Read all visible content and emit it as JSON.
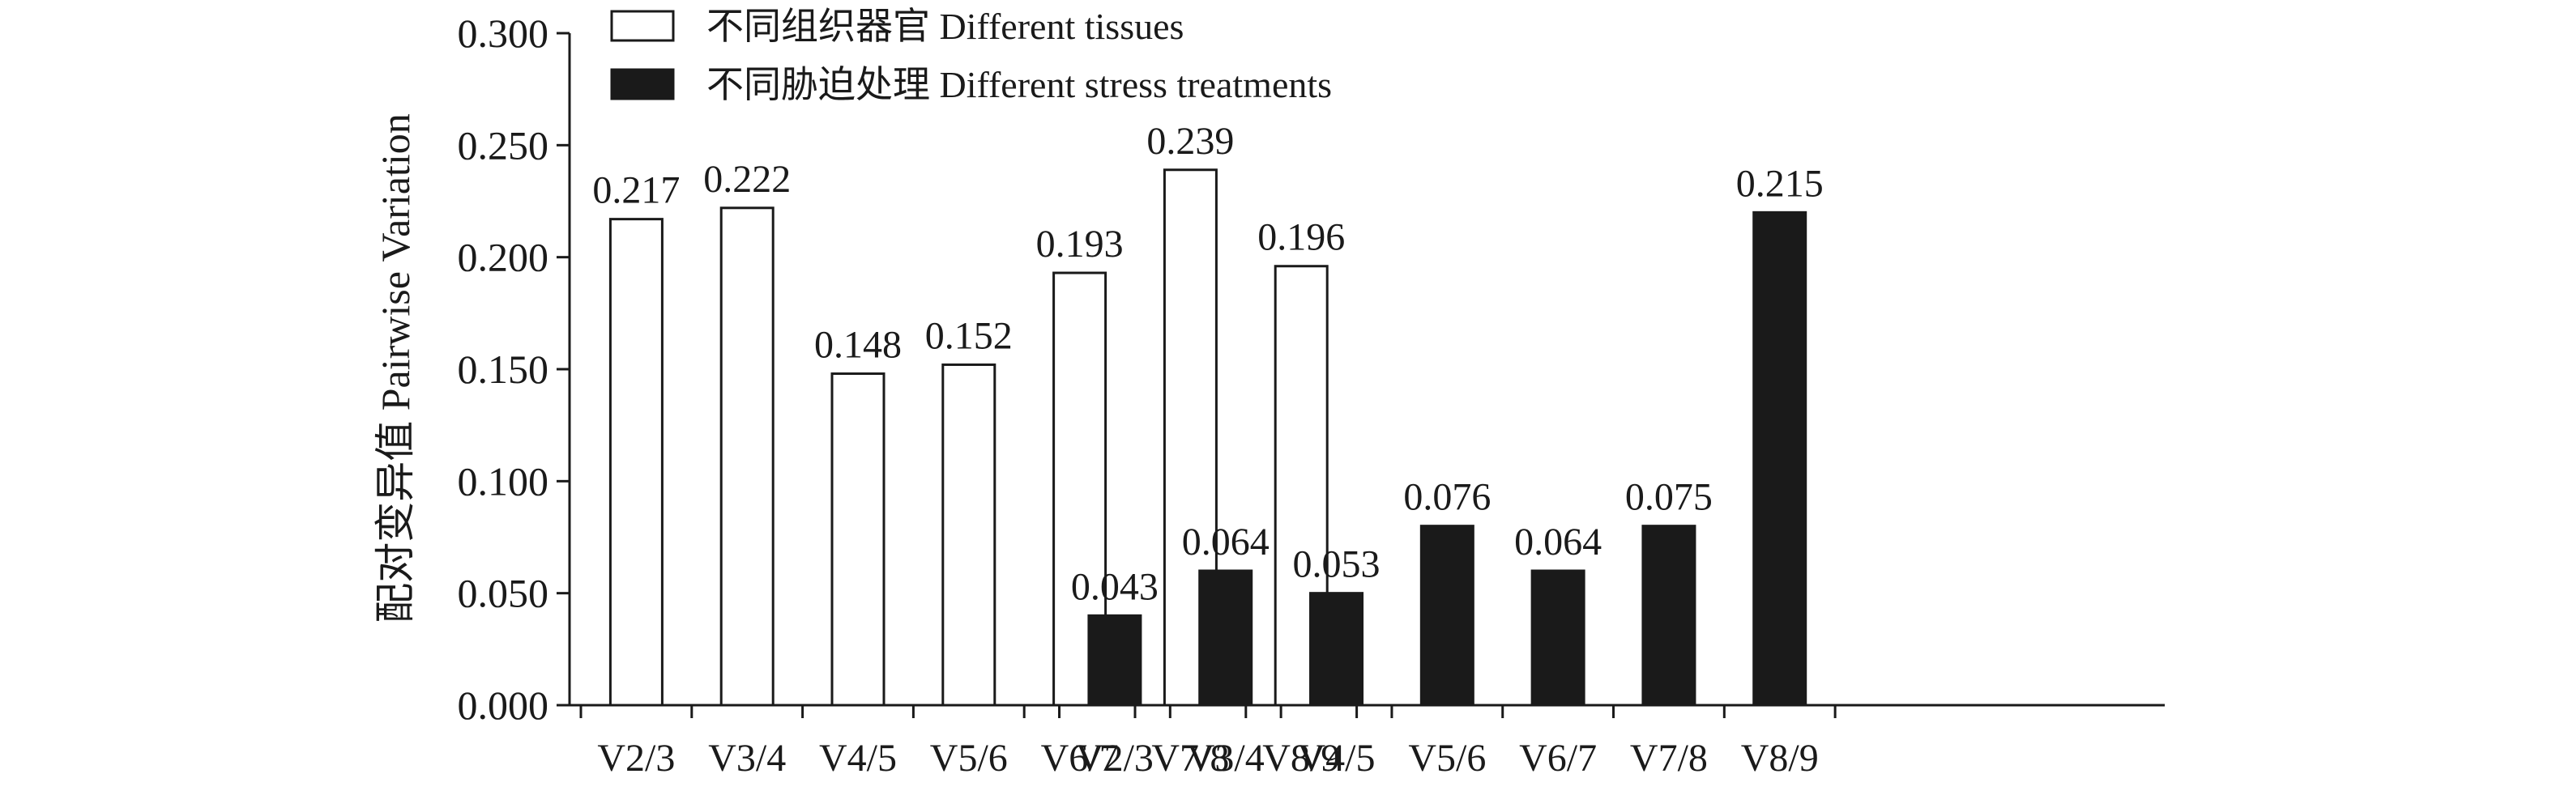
{
  "chart_data": {
    "type": "bar",
    "ylabel": "配对变异值 Pairwise Variation",
    "ylim": [
      0,
      0.3
    ],
    "yticks": [
      "0.000",
      "0.050",
      "0.100",
      "0.150",
      "0.200",
      "0.250",
      "0.300"
    ],
    "grid": false,
    "legend_position": "top-left",
    "series": [
      {
        "name": "不同组织器官 Different tissues",
        "style": "hollow",
        "color": "#ffffff",
        "categories": [
          "V2/3",
          "V3/4",
          "V4/5",
          "V5/6",
          "V6/7",
          "V7/8",
          "V8/9"
        ],
        "values": [
          0.217,
          0.222,
          0.148,
          0.152,
          0.193,
          0.239,
          0.196
        ],
        "labels": [
          "0.217",
          "0.222",
          "0.148",
          "0.152",
          "0.193",
          "0.239",
          "0.196"
        ]
      },
      {
        "name": "不同胁迫处理 Different stress treatments",
        "style": "filled",
        "color": "#1a1a1a",
        "categories": [
          "V2/3",
          "V3/4",
          "V4/5",
          "V5/6",
          "V6/7",
          "V7/8",
          "V8/9"
        ],
        "values": [
          0.04,
          0.06,
          0.05,
          0.08,
          0.06,
          0.08,
          0.22
        ],
        "labels": [
          "0.043",
          "0.064",
          "0.053",
          "0.076",
          "0.064",
          "0.075",
          "0.215"
        ]
      }
    ]
  }
}
